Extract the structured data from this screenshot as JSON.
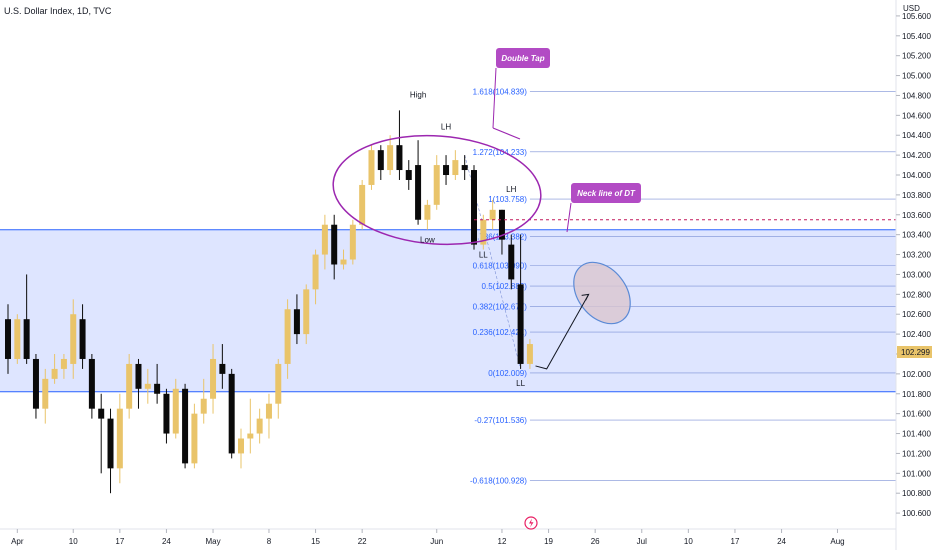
{
  "chart_data": {
    "type": "candlestick",
    "title": "U.S. Dollar Index, 1D, TVC",
    "currency": "USD",
    "last_price": "102.299",
    "y_ticks": [
      "105.600",
      "105.400",
      "105.200",
      "105.000",
      "104.800",
      "104.600",
      "104.400",
      "104.200",
      "104.000",
      "103.800",
      "103.600",
      "103.400",
      "103.200",
      "103.000",
      "102.800",
      "102.600",
      "102.400",
      "102.200",
      "102.000",
      "101.800",
      "101.600",
      "101.400",
      "101.200",
      "101.000",
      "100.800",
      "100.600"
    ],
    "ylim": [
      100.44,
      105.76
    ],
    "x_ticks": [
      {
        "label": "Apr",
        "bar": 1
      },
      {
        "label": "10",
        "bar": 7
      },
      {
        "label": "17",
        "bar": 12
      },
      {
        "label": "24",
        "bar": 17
      },
      {
        "label": "May",
        "bar": 22
      },
      {
        "label": "8",
        "bar": 28
      },
      {
        "label": "15",
        "bar": 33
      },
      {
        "label": "22",
        "bar": 38
      },
      {
        "label": "Jun",
        "bar": 46
      },
      {
        "label": "12",
        "bar": 53
      },
      {
        "label": "19",
        "bar": 58
      },
      {
        "label": "26",
        "bar": 63
      },
      {
        "label": "Jul",
        "bar": 68
      },
      {
        "label": "10",
        "bar": 73
      },
      {
        "label": "17",
        "bar": 78
      },
      {
        "label": "24",
        "bar": 83
      },
      {
        "label": "Aug",
        "bar": 89
      }
    ],
    "candles": [
      {
        "o": 102.55,
        "h": 102.7,
        "l": 102.0,
        "c": 102.15
      },
      {
        "o": 102.15,
        "h": 102.6,
        "l": 102.1,
        "c": 102.55
      },
      {
        "o": 102.55,
        "h": 103.0,
        "l": 102.1,
        "c": 102.15
      },
      {
        "o": 102.15,
        "h": 102.2,
        "l": 101.55,
        "c": 101.65
      },
      {
        "o": 101.65,
        "h": 102.05,
        "l": 101.5,
        "c": 101.95
      },
      {
        "o": 101.95,
        "h": 102.2,
        "l": 101.9,
        "c": 102.05
      },
      {
        "o": 102.05,
        "h": 102.2,
        "l": 101.95,
        "c": 102.15
      },
      {
        "o": 102.1,
        "h": 102.75,
        "l": 101.95,
        "c": 102.6
      },
      {
        "o": 102.55,
        "h": 102.7,
        "l": 102.05,
        "c": 102.15
      },
      {
        "o": 102.15,
        "h": 102.2,
        "l": 101.55,
        "c": 101.65
      },
      {
        "o": 101.65,
        "h": 101.8,
        "l": 101.0,
        "c": 101.55
      },
      {
        "o": 101.55,
        "h": 101.65,
        "l": 100.8,
        "c": 101.05
      },
      {
        "o": 101.05,
        "h": 101.8,
        "l": 100.9,
        "c": 101.65
      },
      {
        "o": 101.65,
        "h": 102.2,
        "l": 101.55,
        "c": 102.1
      },
      {
        "o": 102.1,
        "h": 102.15,
        "l": 101.65,
        "c": 101.85
      },
      {
        "o": 101.85,
        "h": 102.05,
        "l": 101.7,
        "c": 101.9
      },
      {
        "o": 101.9,
        "h": 102.1,
        "l": 101.7,
        "c": 101.8
      },
      {
        "o": 101.8,
        "h": 101.85,
        "l": 101.3,
        "c": 101.4
      },
      {
        "o": 101.4,
        "h": 101.95,
        "l": 101.35,
        "c": 101.85
      },
      {
        "o": 101.85,
        "h": 101.9,
        "l": 101.05,
        "c": 101.1
      },
      {
        "o": 101.1,
        "h": 101.7,
        "l": 101.05,
        "c": 101.6
      },
      {
        "o": 101.6,
        "h": 101.95,
        "l": 101.5,
        "c": 101.75
      },
      {
        "o": 101.75,
        "h": 102.3,
        "l": 101.6,
        "c": 102.15
      },
      {
        "o": 102.1,
        "h": 102.3,
        "l": 101.85,
        "c": 102.0
      },
      {
        "o": 102.0,
        "h": 102.05,
        "l": 101.15,
        "c": 101.2
      },
      {
        "o": 101.2,
        "h": 101.45,
        "l": 101.05,
        "c": 101.35
      },
      {
        "o": 101.35,
        "h": 101.75,
        "l": 101.2,
        "c": 101.4
      },
      {
        "o": 101.4,
        "h": 101.65,
        "l": 101.3,
        "c": 101.55
      },
      {
        "o": 101.55,
        "h": 101.8,
        "l": 101.35,
        "c": 101.7
      },
      {
        "o": 101.7,
        "h": 102.15,
        "l": 101.55,
        "c": 102.1
      },
      {
        "o": 102.1,
        "h": 102.75,
        "l": 101.95,
        "c": 102.65
      },
      {
        "o": 102.65,
        "h": 102.8,
        "l": 102.3,
        "c": 102.4
      },
      {
        "o": 102.4,
        "h": 102.9,
        "l": 102.3,
        "c": 102.85
      },
      {
        "o": 102.85,
        "h": 103.25,
        "l": 102.7,
        "c": 103.2
      },
      {
        "o": 103.2,
        "h": 103.6,
        "l": 103.05,
        "c": 103.5
      },
      {
        "o": 103.5,
        "h": 103.6,
        "l": 102.95,
        "c": 103.1
      },
      {
        "o": 103.1,
        "h": 103.25,
        "l": 103.05,
        "c": 103.15
      },
      {
        "o": 103.15,
        "h": 103.55,
        "l": 103.1,
        "c": 103.5
      },
      {
        "o": 103.5,
        "h": 103.95,
        "l": 103.45,
        "c": 103.9
      },
      {
        "o": 103.9,
        "h": 104.3,
        "l": 103.85,
        "c": 104.25
      },
      {
        "o": 104.25,
        "h": 104.3,
        "l": 103.95,
        "c": 104.05
      },
      {
        "o": 104.05,
        "h": 104.4,
        "l": 104.0,
        "c": 104.3
      },
      {
        "o": 104.3,
        "h": 104.65,
        "l": 103.95,
        "c": 104.05
      },
      {
        "o": 104.05,
        "h": 104.15,
        "l": 103.85,
        "c": 103.95
      },
      {
        "o": 104.1,
        "h": 104.35,
        "l": 103.5,
        "c": 103.55
      },
      {
        "o": 103.55,
        "h": 103.75,
        "l": 103.45,
        "c": 103.7
      },
      {
        "o": 103.7,
        "h": 104.2,
        "l": 103.65,
        "c": 104.1
      },
      {
        "o": 104.1,
        "h": 104.2,
        "l": 103.9,
        "c": 104.0
      },
      {
        "o": 104.0,
        "h": 104.25,
        "l": 103.95,
        "c": 104.15
      },
      {
        "o": 104.1,
        "h": 104.2,
        "l": 103.95,
        "c": 104.05
      },
      {
        "o": 104.05,
        "h": 104.1,
        "l": 103.25,
        "c": 103.3
      },
      {
        "o": 103.3,
        "h": 103.6,
        "l": 103.25,
        "c": 103.55
      },
      {
        "o": 103.55,
        "h": 103.75,
        "l": 103.45,
        "c": 103.65
      },
      {
        "o": 103.65,
        "h": 103.65,
        "l": 103.2,
        "c": 103.35
      },
      {
        "o": 103.3,
        "h": 103.4,
        "l": 102.85,
        "c": 102.95
      },
      {
        "o": 102.9,
        "h": 103.4,
        "l": 102.05,
        "c": 102.1
      },
      {
        "o": 102.1,
        "h": 102.35,
        "l": 102.05,
        "c": 102.3
      }
    ],
    "fib_levels": [
      {
        "label": "1.618(104.839)",
        "value": 104.839
      },
      {
        "label": "1.272(104.233)",
        "value": 104.233
      },
      {
        "label": "1(103.758)",
        "value": 103.758
      },
      {
        "label": "0.786(103.382)",
        "value": 103.382
      },
      {
        "label": "0.618(103.090)",
        "value": 103.09
      },
      {
        "label": "0.5(102.883)",
        "value": 102.883
      },
      {
        "label": "0.382(102.677)",
        "value": 102.677
      },
      {
        "label": "0.236(102.421)",
        "value": 102.421
      },
      {
        "label": "0(102.009)",
        "value": 102.009
      },
      {
        "label": "-0.27(101.536)",
        "value": 101.536
      },
      {
        "label": "-0.618(100.928)",
        "value": 100.928
      }
    ],
    "zone": {
      "top": 103.45,
      "bottom": 101.82
    },
    "neckline": 103.55,
    "annotations": [
      {
        "text": "High",
        "bar": 44,
        "price": 104.78
      },
      {
        "text": "LH",
        "bar": 47,
        "price": 104.46
      },
      {
        "text": "LH",
        "bar": 54,
        "price": 103.83
      },
      {
        "text": "Low",
        "bar": 45,
        "price": 103.32
      },
      {
        "text": "LL",
        "bar": 51,
        "price": 103.17
      },
      {
        "text": "LL",
        "bar": 55,
        "price": 101.88
      }
    ],
    "callouts": {
      "double_top": "Double Tap",
      "neckline": "Neck line of DT"
    },
    "projection": [
      {
        "bar": 56.6,
        "price": 102.08
      },
      {
        "bar": 57.8,
        "price": 102.05
      },
      {
        "bar": 62.3,
        "price": 102.8
      }
    ]
  }
}
